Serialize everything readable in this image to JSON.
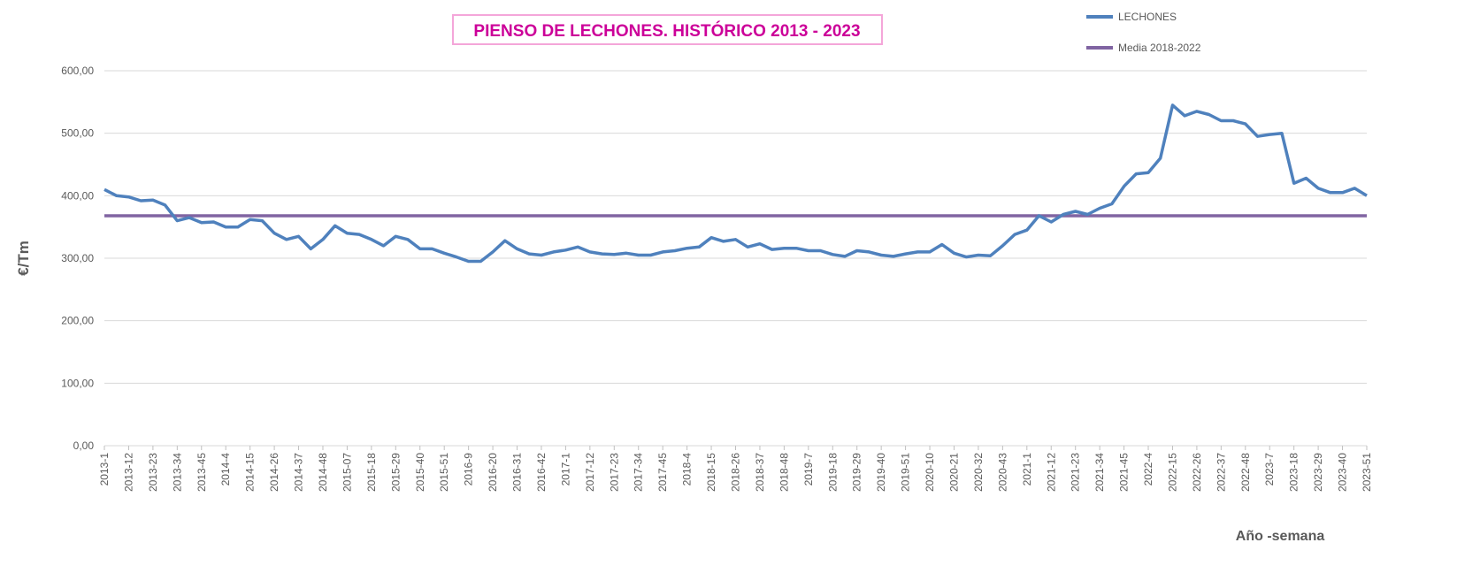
{
  "chart_data": {
    "type": "line",
    "title": "PIENSO DE LECHONES. HISTÓRICO 2013 - 2023",
    "y_label": "€/Tm",
    "x_label": "Año -semana",
    "categories": [
      "2013-1",
      null,
      "2013-12",
      null,
      "2013-23",
      null,
      "2013-34",
      null,
      "2013-45",
      null,
      "2014-4",
      null,
      "2014-15",
      null,
      "2014-26",
      null,
      "2014-37",
      null,
      "2014-48",
      null,
      "2015-07",
      null,
      "2015-18",
      null,
      "2015-29",
      null,
      "2015-40",
      null,
      "2015-51",
      null,
      "2016-9",
      null,
      "2016-20",
      null,
      "2016-31",
      null,
      "2016-42",
      null,
      "2017-1",
      null,
      "2017-12",
      null,
      "2017-23",
      null,
      "2017-34",
      null,
      "2017-45",
      null,
      "2018-4",
      null,
      "2018-15",
      null,
      "2018-26",
      null,
      "2018-37",
      null,
      "2018-48",
      null,
      "2019-7",
      null,
      "2019-18",
      null,
      "2019-29",
      null,
      "2019-40",
      null,
      "2019-51",
      null,
      "2020-10",
      null,
      "2020-21",
      null,
      "2020-32",
      null,
      "2020-43",
      null,
      "2021-1",
      null,
      "2021-12",
      null,
      "2021-23",
      null,
      "2021-34",
      null,
      "2021-45",
      null,
      "2022-4",
      null,
      "2022-15",
      null,
      "2022-26",
      null,
      "2022-37",
      null,
      "2022-48",
      null,
      "2023-7",
      null,
      "2023-18",
      null,
      "2023-29",
      null,
      "2023-40",
      null,
      "2023-51"
    ],
    "series": [
      {
        "name": "LECHONES",
        "color": "#4f81bd",
        "values": [
          410,
          400,
          398,
          392,
          393,
          385,
          360,
          365,
          357,
          358,
          350,
          350,
          362,
          360,
          340,
          330,
          335,
          315,
          330,
          352,
          340,
          338,
          330,
          320,
          335,
          330,
          315,
          315,
          308,
          302,
          295,
          295,
          310,
          328,
          315,
          307,
          305,
          310,
          313,
          318,
          310,
          307,
          306,
          308,
          305,
          305,
          310,
          312,
          316,
          318,
          333,
          327,
          330,
          318,
          323,
          314,
          316,
          316,
          312,
          312,
          306,
          303,
          312,
          310,
          305,
          303,
          307,
          310,
          310,
          322,
          308,
          302,
          305,
          304,
          320,
          338,
          345,
          368,
          358,
          370,
          375,
          370,
          380,
          387,
          415,
          435,
          437,
          460,
          545,
          528,
          535,
          530,
          520,
          520,
          515,
          495,
          498,
          500,
          420,
          428,
          412,
          405,
          405,
          412,
          400
        ]
      }
    ],
    "mean_line": {
      "name": "Media 2018-2022",
      "color": "#8064a2",
      "value": 368
    },
    "ylim": [
      0,
      600
    ],
    "yticks": [
      {
        "value": 0,
        "label": "0,00"
      },
      {
        "value": 100,
        "label": "100,00"
      },
      {
        "value": 200,
        "label": "200,00"
      },
      {
        "value": 300,
        "label": "300,00"
      },
      {
        "value": 400,
        "label": "400,00"
      },
      {
        "value": 500,
        "label": "500,00"
      },
      {
        "value": 600,
        "label": "600,00"
      }
    ],
    "grid": true
  }
}
